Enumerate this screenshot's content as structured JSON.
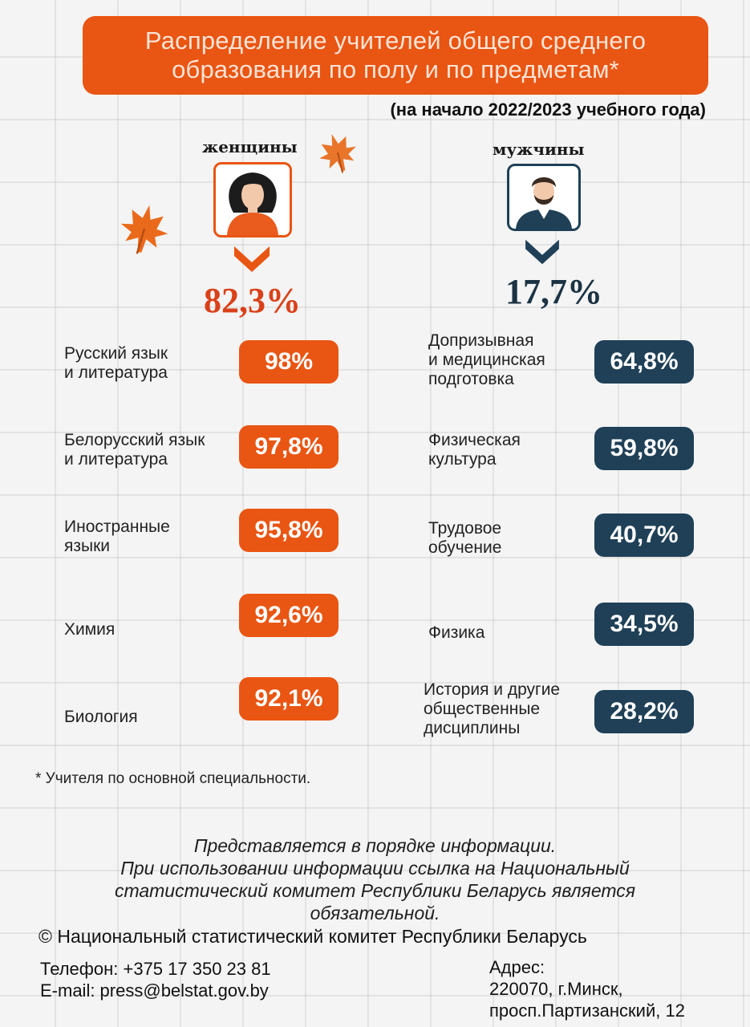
{
  "header": {
    "title_line1": "Распределение учителей общего среднего",
    "title_line2": "образования по полу и по предметам*",
    "subtitle": "(на начало 2022/2023 учебного года)"
  },
  "women": {
    "label": "женщины",
    "share": "82,3%",
    "subjects": [
      {
        "line1": "Русский язык",
        "line2": "и литература",
        "line3": "",
        "value": "98%"
      },
      {
        "line1": "Белорусский язык",
        "line2": "и литература",
        "line3": "",
        "value": "97,8%"
      },
      {
        "line1": "Иностранные",
        "line2": "языки",
        "line3": "",
        "value": "95,8%"
      },
      {
        "line1": "Химия",
        "line2": "",
        "line3": "",
        "value": "92,6%"
      },
      {
        "line1": "Биология",
        "line2": "",
        "line3": "",
        "value": "92,1%"
      }
    ]
  },
  "men": {
    "label": "мужчины",
    "share": "17,7%",
    "subjects": [
      {
        "line1": "Допризывная",
        "line2": "и медицинская",
        "line3": "подготовка",
        "value": "64,8%"
      },
      {
        "line1": "Физическая",
        "line2": "культура",
        "line3": "",
        "value": "59,8%"
      },
      {
        "line1": "Трудовое",
        "line2": "обучение",
        "line3": "",
        "value": "40,7%"
      },
      {
        "line1": "Физика",
        "line2": "",
        "line3": "",
        "value": "34,5%"
      },
      {
        "line1": "История и другие",
        "line2": "общественные",
        "line3": "дисциплины",
        "value": "28,2%"
      }
    ]
  },
  "footnote": "* Учителя по основной специальности.",
  "info": {
    "line1": "Представляется в порядке информации.",
    "line2": "При использовании информации ссылка на Национальный",
    "line3": "статистический комитет Республики Беларусь является",
    "line4": "обязательной."
  },
  "copyright": "© Национальный статистический комитет Республики Беларусь",
  "contacts": {
    "phone": "Телефон: +375 17 350 23 81",
    "email": "E-mail: press@belstat.gov.by",
    "address_label": "Адрес:",
    "address_line1": "220070, г.Минск,",
    "address_line2": "просп.Партизанский, 12"
  },
  "colors": {
    "accent_orange": "#e95512",
    "accent_navy": "#1f4057"
  },
  "chart_data": {
    "type": "table",
    "title": "Распределение учителей общего среднего образования по полу и по предметам*",
    "subtitle": "(на начало 2022/2023 учебного года)",
    "series": [
      {
        "name": "женщины",
        "total": 82.3,
        "categories": [
          "Русский язык и литература",
          "Белорусский язык и литература",
          "Иностранные языки",
          "Химия",
          "Биология"
        ],
        "values": [
          98,
          97.8,
          95.8,
          92.6,
          92.1
        ]
      },
      {
        "name": "мужчины",
        "total": 17.7,
        "categories": [
          "Допризывная и медицинская подготовка",
          "Физическая культура",
          "Трудовое обучение",
          "Физика",
          "История и другие общественные дисциплины"
        ],
        "values": [
          64.8,
          59.8,
          40.7,
          34.5,
          28.2
        ]
      }
    ]
  }
}
